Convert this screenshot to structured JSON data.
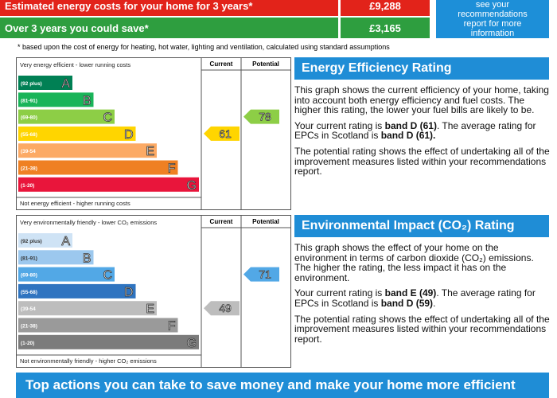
{
  "costs": {
    "rows": [
      {
        "label": "Estimated energy costs for your home for 3 years*",
        "value": "£9,288"
      },
      {
        "label": "Over 3 years you could save*",
        "value": "£3,165"
      }
    ],
    "note": "see your recommendations report for more information",
    "footnote": "* based upon the cost of energy for heating, hot water, lighting and ventilation, calculated using standard assumptions"
  },
  "energy": {
    "top": "Very energy efficient - lower running costs",
    "current_label": "Current",
    "potential_label": "Potential",
    "bands": [
      {
        "range": "(92 plus)",
        "letter": "A"
      },
      {
        "range": "(81-91)",
        "letter": "B"
      },
      {
        "range": "(69-80)",
        "letter": "C"
      },
      {
        "range": "(55-68)",
        "letter": "D"
      },
      {
        "range": "(39-54",
        "letter": "E"
      },
      {
        "range": "(21-38)",
        "letter": "F"
      },
      {
        "range": "(1-20)",
        "letter": "G"
      }
    ],
    "colors": [
      "#008054",
      "#19b459",
      "#8dce46",
      "#ffd500",
      "#fcaa65",
      "#ef8023",
      "#e9153b"
    ],
    "bottom": "Not energy efficient - higher running costs",
    "current": 61,
    "potential": 78,
    "heading": "Energy Efficiency Rating",
    "paragraphs": [
      [
        "This graph shows the current efficiency of your home, taking into account both energy efficiency and fuel costs. The higher this rating, the lower your fuel bills are likely to be."
      ],
      [
        "Your current rating is ",
        "band D (61)",
        ". The average rating for EPCs in Scotland is ",
        "band D (61)."
      ],
      [
        "The potential rating shows the effect of undertaking all of the improvement measures listed within your recommendations report."
      ]
    ]
  },
  "environment": {
    "top": "Very environmentally friendly - lower CO₂ emissions",
    "current_label": "Current",
    "potential_label": "Potential",
    "bands": [
      {
        "range": "(92 plus)",
        "letter": "A"
      },
      {
        "range": "(81-91)",
        "letter": "B"
      },
      {
        "range": "(69-80)",
        "letter": "C"
      },
      {
        "range": "(55-68)",
        "letter": "D"
      },
      {
        "range": "(39-54",
        "letter": "E"
      },
      {
        "range": "(21-38)",
        "letter": "F"
      },
      {
        "range": "(1-20)",
        "letter": "G"
      }
    ],
    "colors": [
      "#cfe3f5",
      "#9cc8ee",
      "#52a8e6",
      "#2f74c0",
      "#bdbdbd",
      "#9a9a9a",
      "#7b7b7b"
    ],
    "bottom": "Not environmentally friendly - higher CO₂ emissions",
    "current": 49,
    "potential": 71,
    "heading": "Environmental Impact (CO₂) Rating",
    "paragraphs": [
      [
        "This graph shows the effect of your home on the environment in terms of carbon dioxide (CO₂) emissions. The higher the rating, the less impact it has on the environment."
      ],
      [
        "Your current rating is ",
        "band E (49)",
        ". The average rating for EPCs in Scotland is ",
        "band D (59)",
        "."
      ],
      [
        "The potential rating shows the effect of undertaking all of the improvement measures listed within your recommendations report."
      ]
    ]
  },
  "footer": "Top actions you can take to save money and make your home more efficient"
}
